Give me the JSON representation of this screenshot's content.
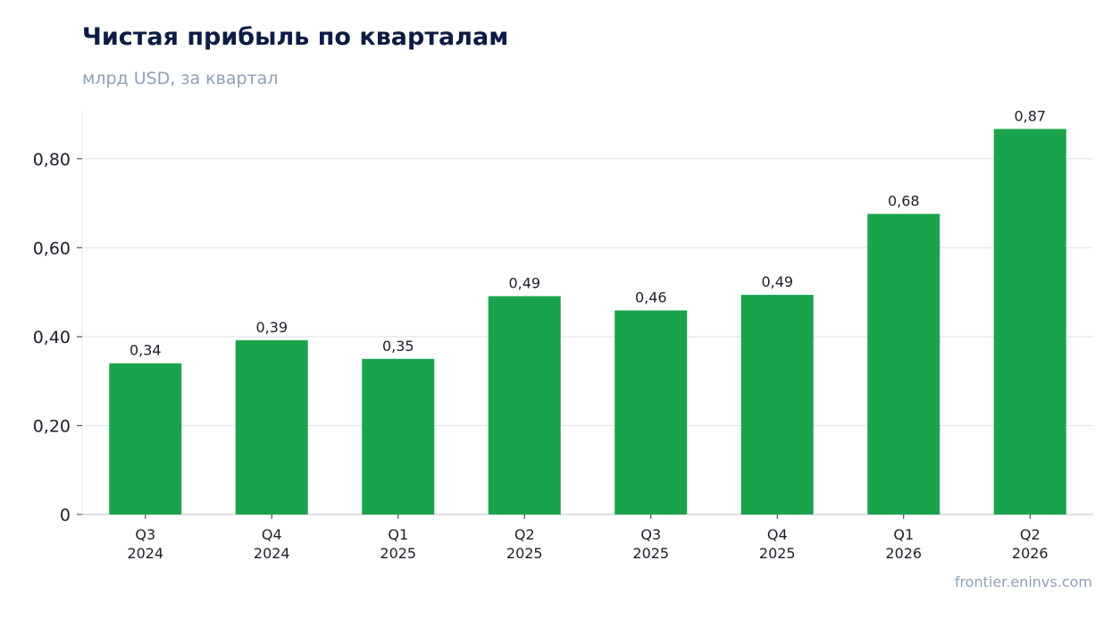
{
  "header": {
    "title": "Чистая прибыль по кварталам",
    "subtitle": "млрд USD, за квартал"
  },
  "footer": {
    "source": "frontier.eninvs.com"
  },
  "colors": {
    "bar": "#19a44b",
    "grid": "#e3e7ed",
    "axis": "#c9ced6",
    "title": "#0c1c44",
    "muted": "#8fa0b4",
    "text": "#1b1f2a"
  },
  "chart_data": {
    "type": "bar",
    "title": "Чистая прибыль по кварталам",
    "subtitle": "млрд USD, за квартал",
    "categories": [
      [
        "Q3",
        "2024"
      ],
      [
        "Q4",
        "2024"
      ],
      [
        "Q1",
        "2025"
      ],
      [
        "Q2",
        "2025"
      ],
      [
        "Q3",
        "2025"
      ],
      [
        "Q4",
        "2025"
      ],
      [
        "Q1",
        "2026"
      ],
      [
        "Q2",
        "2026"
      ]
    ],
    "values": [
      0.34,
      0.392,
      0.35,
      0.491,
      0.459,
      0.494,
      0.676,
      0.867
    ],
    "data_labels": [
      "0,34",
      "0,39",
      "0,35",
      "0,49",
      "0,46",
      "0,49",
      "0,68",
      "0,87"
    ],
    "yticks": [
      0,
      0.2,
      0.4,
      0.6,
      0.8
    ],
    "ytick_labels": [
      "0",
      "0,20",
      "0,40",
      "0,60",
      "0,80"
    ],
    "ylim": [
      0,
      0.91
    ],
    "grid": "horizontal",
    "legend": "none"
  }
}
